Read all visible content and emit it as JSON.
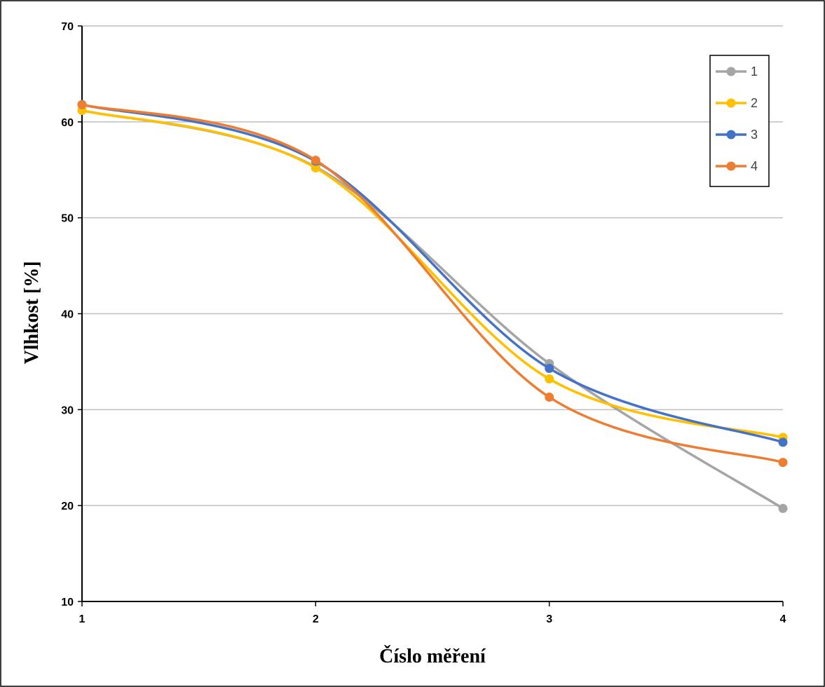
{
  "chart_data": {
    "type": "line",
    "title": "",
    "xlabel": "Číslo měření",
    "ylabel": "Vlhkost [%]",
    "x": [
      1,
      2,
      3,
      4
    ],
    "xlim": [
      1,
      4
    ],
    "ylim": [
      10,
      70
    ],
    "x_ticks": [
      "1",
      "2",
      "3",
      "4"
    ],
    "y_ticks": [
      "10",
      "20",
      "30",
      "40",
      "50",
      "60",
      "70"
    ],
    "grid": "horizontal",
    "legend_position": "top-right",
    "smooth": true,
    "series": [
      {
        "name": "1",
        "color": "#A5A5A5",
        "values": [
          61.2,
          55.3,
          34.8,
          19.7
        ]
      },
      {
        "name": "2",
        "color": "#FFC000",
        "values": [
          61.2,
          55.2,
          33.2,
          27.1
        ]
      },
      {
        "name": "3",
        "color": "#4472C4",
        "values": [
          61.8,
          55.9,
          34.3,
          26.6
        ]
      },
      {
        "name": "4",
        "color": "#ED7D31",
        "values": [
          61.8,
          56.0,
          31.3,
          24.5
        ]
      }
    ]
  }
}
